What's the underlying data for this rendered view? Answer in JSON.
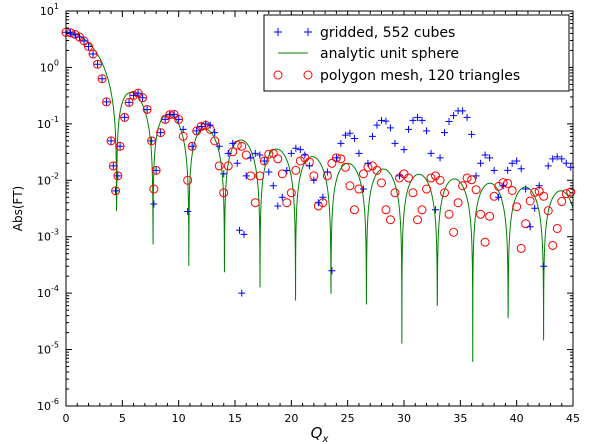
{
  "chart_data": {
    "type": "scatter",
    "title": "",
    "xlabel": "Q",
    "xlabel_sub": "x",
    "ylabel": "Abs(FT)",
    "xlim": [
      0,
      45
    ],
    "ylim": [
      1e-06,
      10
    ],
    "yscale": "log",
    "grid": false,
    "legend_position": "top-right",
    "x_ticks": [
      0,
      5,
      10,
      15,
      20,
      25,
      30,
      35,
      40,
      45
    ],
    "y_ticks": [
      {
        "value": 1e-06,
        "base": "10",
        "exp": "-6"
      },
      {
        "value": 1e-05,
        "base": "10",
        "exp": "-5"
      },
      {
        "value": 0.0001,
        "base": "10",
        "exp": "-4"
      },
      {
        "value": 0.001,
        "base": "10",
        "exp": "-3"
      },
      {
        "value": 0.01,
        "base": "10",
        "exp": "-2"
      },
      {
        "value": 0.1,
        "base": "10",
        "exp": "-1"
      },
      {
        "value": 1,
        "base": "10",
        "exp": "0"
      },
      {
        "value": 10,
        "base": "10",
        "exp": "1"
      }
    ],
    "series": [
      {
        "name": "gridded, 552 cubes",
        "marker": "plus",
        "color": "#0000ff",
        "points": [
          [
            0.0,
            4.2
          ],
          [
            0.4,
            4.11
          ],
          [
            0.8,
            3.86
          ],
          [
            1.2,
            3.46
          ],
          [
            1.6,
            2.94
          ],
          [
            2.0,
            2.35
          ],
          [
            2.4,
            1.73
          ],
          [
            2.8,
            1.14
          ],
          [
            3.2,
            0.63
          ],
          [
            3.6,
            0.245
          ],
          [
            4.0,
            0.05
          ],
          [
            4.2,
            0.018
          ],
          [
            4.4,
            0.0065
          ],
          [
            4.6,
            0.012
          ],
          [
            4.8,
            0.04
          ],
          [
            5.2,
            0.13
          ],
          [
            5.6,
            0.24
          ],
          [
            6.0,
            0.32
          ],
          [
            6.4,
            0.35
          ],
          [
            6.8,
            0.29
          ],
          [
            7.2,
            0.18
          ],
          [
            7.6,
            0.05
          ],
          [
            7.8,
            0.0038
          ],
          [
            8.0,
            0.015
          ],
          [
            8.4,
            0.07
          ],
          [
            8.8,
            0.12
          ],
          [
            9.2,
            0.145
          ],
          [
            9.6,
            0.147
          ],
          [
            10.0,
            0.12
          ],
          [
            10.4,
            0.08
          ],
          [
            10.8,
            0.0028
          ],
          [
            11.2,
            0.04
          ],
          [
            11.6,
            0.075
          ],
          [
            12.0,
            0.09
          ],
          [
            12.4,
            0.1
          ],
          [
            12.8,
            0.095
          ],
          [
            13.2,
            0.07
          ],
          [
            13.6,
            0.04
          ],
          [
            14.0,
            0.013
          ],
          [
            14.4,
            0.03
          ],
          [
            14.8,
            0.045
          ],
          [
            15.2,
            0.02
          ],
          [
            15.4,
            0.0013
          ],
          [
            15.6,
            0.0001
          ],
          [
            15.8,
            0.0011
          ],
          [
            16.0,
            0.012
          ],
          [
            16.4,
            0.025
          ],
          [
            16.8,
            0.03
          ],
          [
            17.2,
            0.028
          ],
          [
            17.6,
            0.022
          ],
          [
            18.0,
            0.014
          ],
          [
            18.4,
            0.008
          ],
          [
            18.8,
            0.0035
          ],
          [
            19.2,
            0.005
          ],
          [
            19.6,
            0.015
          ],
          [
            20.0,
            0.03
          ],
          [
            20.4,
            0.037
          ],
          [
            20.8,
            0.035
          ],
          [
            21.2,
            0.028
          ],
          [
            21.6,
            0.018
          ],
          [
            22.0,
            0.01
          ],
          [
            22.4,
            0.004
          ],
          [
            22.8,
            0.005
          ],
          [
            23.2,
            0.014
          ],
          [
            23.6,
            0.00025
          ],
          [
            24.0,
            0.025
          ],
          [
            24.4,
            0.045
          ],
          [
            24.8,
            0.063
          ],
          [
            25.2,
            0.068
          ],
          [
            25.6,
            0.055
          ],
          [
            26.0,
            0.03
          ],
          [
            26.4,
            0.007
          ],
          [
            26.8,
            0.02
          ],
          [
            27.2,
            0.06
          ],
          [
            27.6,
            0.095
          ],
          [
            28.0,
            0.115
          ],
          [
            28.4,
            0.112
          ],
          [
            28.8,
            0.085
          ],
          [
            29.2,
            0.045
          ],
          [
            29.6,
            0.012
          ],
          [
            30.0,
            0.035
          ],
          [
            30.4,
            0.08
          ],
          [
            30.8,
            0.115
          ],
          [
            31.2,
            0.13
          ],
          [
            31.6,
            0.115
          ],
          [
            32.0,
            0.075
          ],
          [
            32.4,
            0.03
          ],
          [
            32.8,
            0.003
          ],
          [
            33.2,
            0.025
          ],
          [
            33.6,
            0.07
          ],
          [
            34.0,
            0.11
          ],
          [
            34.4,
            0.14
          ],
          [
            34.8,
            0.17
          ],
          [
            35.2,
            0.17
          ],
          [
            35.6,
            0.13
          ],
          [
            36.0,
            0.065
          ],
          [
            36.4,
            0.012
          ],
          [
            36.8,
            0.02
          ],
          [
            37.2,
            0.028
          ],
          [
            37.6,
            0.025
          ],
          [
            38.0,
            0.015
          ],
          [
            38.4,
            0.005
          ],
          [
            38.8,
            0.008
          ],
          [
            39.2,
            0.015
          ],
          [
            39.6,
            0.02
          ],
          [
            40.0,
            0.022
          ],
          [
            40.4,
            0.016
          ],
          [
            40.8,
            0.007
          ],
          [
            41.2,
            0.0015
          ],
          [
            41.6,
            0.0032
          ],
          [
            42.0,
            0.008
          ],
          [
            42.4,
            0.0003
          ],
          [
            42.8,
            0.018
          ],
          [
            43.2,
            0.024
          ],
          [
            43.6,
            0.026
          ],
          [
            44.0,
            0.024
          ],
          [
            44.4,
            0.02
          ],
          [
            44.8,
            0.017
          ]
        ]
      },
      {
        "name": "analytic unit sphere",
        "marker": "line",
        "color": "#008000",
        "points": []
      },
      {
        "name": "polygon mesh, 120 triangles",
        "marker": "circle",
        "color": "#ff0000",
        "points": [
          [
            0.0,
            4.2
          ],
          [
            0.4,
            4.11
          ],
          [
            0.8,
            3.86
          ],
          [
            1.2,
            3.46
          ],
          [
            1.6,
            2.94
          ],
          [
            2.0,
            2.35
          ],
          [
            2.4,
            1.73
          ],
          [
            2.8,
            1.14
          ],
          [
            3.2,
            0.63
          ],
          [
            3.6,
            0.245
          ],
          [
            4.0,
            0.05
          ],
          [
            4.2,
            0.018
          ],
          [
            4.4,
            0.0065
          ],
          [
            4.6,
            0.012
          ],
          [
            4.8,
            0.04
          ],
          [
            5.2,
            0.13
          ],
          [
            5.6,
            0.24
          ],
          [
            6.0,
            0.32
          ],
          [
            6.4,
            0.35
          ],
          [
            6.8,
            0.29
          ],
          [
            7.2,
            0.18
          ],
          [
            7.6,
            0.05
          ],
          [
            7.8,
            0.007
          ],
          [
            8.0,
            0.015
          ],
          [
            8.4,
            0.07
          ],
          [
            8.8,
            0.12
          ],
          [
            9.2,
            0.145
          ],
          [
            9.6,
            0.147
          ],
          [
            10.0,
            0.12
          ],
          [
            10.4,
            0.06
          ],
          [
            10.8,
            0.01
          ],
          [
            11.2,
            0.04
          ],
          [
            11.6,
            0.075
          ],
          [
            12.0,
            0.09
          ],
          [
            12.4,
            0.094
          ],
          [
            12.8,
            0.08
          ],
          [
            13.2,
            0.05
          ],
          [
            13.6,
            0.018
          ],
          [
            14.0,
            0.006
          ],
          [
            14.4,
            0.018
          ],
          [
            14.8,
            0.032
          ],
          [
            15.2,
            0.042
          ],
          [
            15.6,
            0.04
          ],
          [
            16.0,
            0.028
          ],
          [
            16.4,
            0.012
          ],
          [
            16.8,
            0.004
          ],
          [
            17.2,
            0.012
          ],
          [
            17.6,
            0.022
          ],
          [
            18.0,
            0.029
          ],
          [
            18.4,
            0.03
          ],
          [
            18.8,
            0.024
          ],
          [
            19.2,
            0.013
          ],
          [
            19.6,
            0.004
          ],
          [
            20.0,
            0.006
          ],
          [
            20.4,
            0.015
          ],
          [
            20.8,
            0.022
          ],
          [
            21.2,
            0.025
          ],
          [
            21.6,
            0.021
          ],
          [
            22.0,
            0.012
          ],
          [
            22.4,
            0.0035
          ],
          [
            22.8,
            0.004
          ],
          [
            23.2,
            0.012
          ],
          [
            23.6,
            0.02
          ],
          [
            24.0,
            0.025
          ],
          [
            24.4,
            0.024
          ],
          [
            24.8,
            0.017
          ],
          [
            25.2,
            0.008
          ],
          [
            25.6,
            0.003
          ],
          [
            26.0,
            0.007
          ],
          [
            26.4,
            0.013
          ],
          [
            26.8,
            0.017
          ],
          [
            27.2,
            0.018
          ],
          [
            27.6,
            0.015
          ],
          [
            28.0,
            0.009
          ],
          [
            28.4,
            0.003
          ],
          [
            28.8,
            0.002
          ],
          [
            29.2,
            0.006
          ],
          [
            29.6,
            0.011
          ],
          [
            30.0,
            0.013
          ],
          [
            30.4,
            0.011
          ],
          [
            30.8,
            0.006
          ],
          [
            31.2,
            0.002
          ],
          [
            31.6,
            0.003
          ],
          [
            32.0,
            0.007
          ],
          [
            32.4,
            0.011
          ],
          [
            32.8,
            0.012
          ],
          [
            33.2,
            0.01
          ],
          [
            33.6,
            0.006
          ],
          [
            34.0,
            0.0025
          ],
          [
            34.4,
            0.0012
          ],
          [
            34.8,
            0.004
          ],
          [
            35.2,
            0.008
          ],
          [
            35.6,
            0.011
          ],
          [
            36.0,
            0.0102
          ],
          [
            36.4,
            0.0068
          ],
          [
            36.8,
            0.0025
          ],
          [
            37.2,
            0.0008
          ],
          [
            37.6,
            0.0023
          ],
          [
            38.0,
            0.0052
          ],
          [
            38.4,
            0.0078
          ],
          [
            38.8,
            0.0091
          ],
          [
            39.2,
            0.0088
          ],
          [
            39.6,
            0.0066
          ],
          [
            40.0,
            0.0034
          ],
          [
            40.4,
            0.00062
          ],
          [
            40.8,
            0.0017
          ],
          [
            41.2,
            0.0043
          ],
          [
            41.6,
            0.0061
          ],
          [
            42.0,
            0.0064
          ],
          [
            42.4,
            0.0052
          ],
          [
            42.8,
            0.0029
          ],
          [
            43.2,
            0.0007
          ],
          [
            43.6,
            0.0014
          ],
          [
            44.0,
            0.0042
          ],
          [
            44.4,
            0.0058
          ],
          [
            44.8,
            0.0062
          ]
        ]
      }
    ]
  }
}
